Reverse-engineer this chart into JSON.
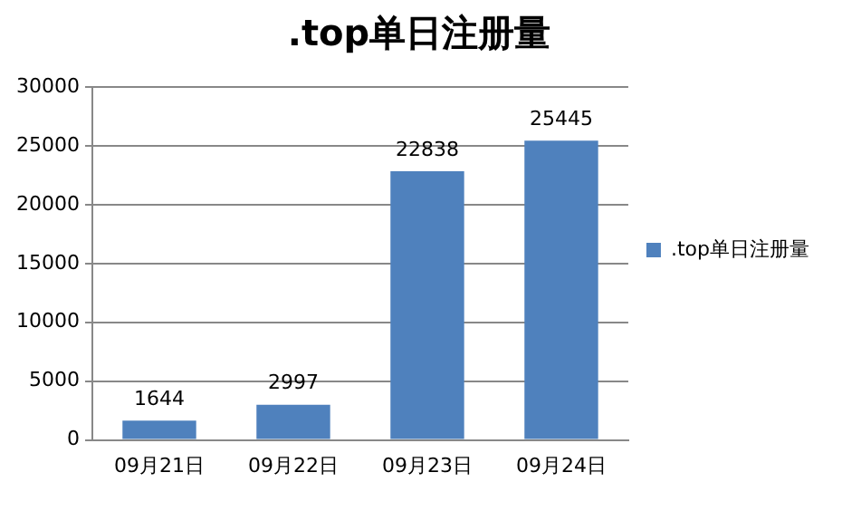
{
  "chart_data": {
    "type": "bar",
    "title": ".top单日注册量",
    "categories": [
      "09月21日",
      "09月22日",
      "09月23日",
      "09月24日"
    ],
    "series": [
      {
        "name": ".top单日注册量",
        "color": "#4f81bd",
        "values": [
          1644,
          2997,
          22838,
          25445
        ]
      }
    ],
    "ylim": [
      0,
      30000
    ],
    "yticks": [
      0,
      5000,
      10000,
      15000,
      20000,
      25000,
      30000
    ],
    "grid": "y",
    "legend": "right",
    "data_labels": true
  }
}
